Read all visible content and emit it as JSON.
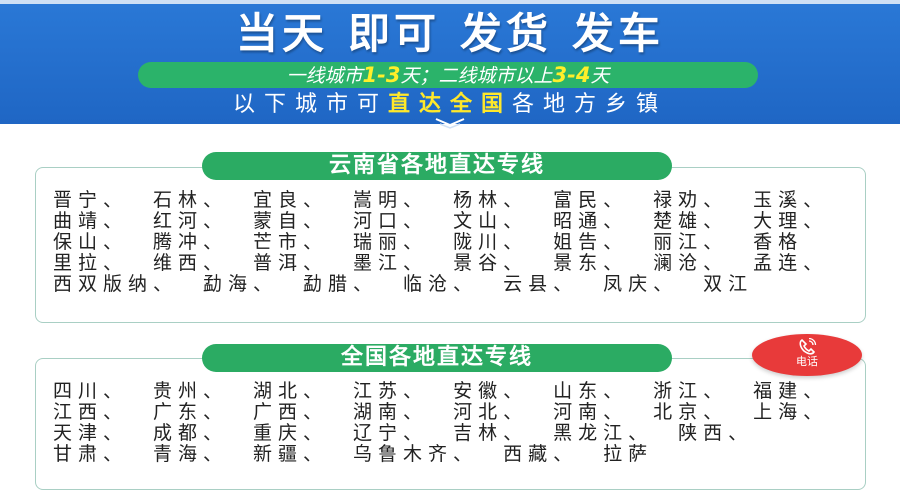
{
  "banner": {
    "title": [
      "当天",
      "即可",
      "发货",
      "发车"
    ],
    "pill": {
      "p1": "一线城市",
      "n1": "1-3",
      "p2": "天；二线城市以上",
      "n2": "3-4",
      "p3": "天"
    },
    "sub": {
      "a": "以下城市可",
      "b": "直达全国",
      "c": "各地方乡镇"
    }
  },
  "sections": [
    {
      "title": "云南省各地直达专线",
      "rows": [
        [
          "晋宁、",
          "石林、",
          "宜良、",
          "嵩明、",
          "杨林、",
          "富民、",
          "禄劝、",
          "玉溪、"
        ],
        [
          "曲靖、",
          "红河、",
          "蒙自、",
          "河口、",
          "文山、",
          "昭通、",
          "楚雄、",
          "大理、"
        ],
        [
          "保山、",
          "腾冲、",
          "芒市、",
          "瑞丽、",
          "陇川、",
          "姐告、",
          "丽江、",
          "香格"
        ],
        [
          "里拉、",
          "维西、",
          "普洱、",
          "墨江、",
          "景谷、",
          "景东、",
          "澜沧、",
          "孟连、"
        ],
        [
          "西双版纳、",
          "勐海、",
          "勐腊、",
          "临沧、",
          "云县、",
          "凤庆、",
          "双江"
        ]
      ]
    },
    {
      "title": "全国各地直达专线",
      "rows": [
        [
          "四川、",
          "贵州、",
          "湖北、",
          "江苏、",
          "安徽、",
          "山东、",
          "浙江、",
          "福建、"
        ],
        [
          "江西、",
          "广东、",
          "广西、",
          "湖南、",
          "河北、",
          "河南、",
          "北京、",
          "上海、"
        ],
        [
          "天津、",
          "成都、",
          "重庆、",
          "辽宁、",
          "吉林、",
          "黑龙江、",
          "陕西、"
        ],
        [
          "甘肃、",
          "青海、",
          "新疆、",
          "乌鲁木齐、",
          "西藏、",
          "拉萨"
        ]
      ]
    }
  ],
  "phone": {
    "label": "电话",
    "icon": "phone-icon"
  },
  "colors": {
    "blue": "#1f66c4",
    "green": "#2bab63",
    "yellow": "#ffe82a",
    "red": "#e83a3a"
  }
}
